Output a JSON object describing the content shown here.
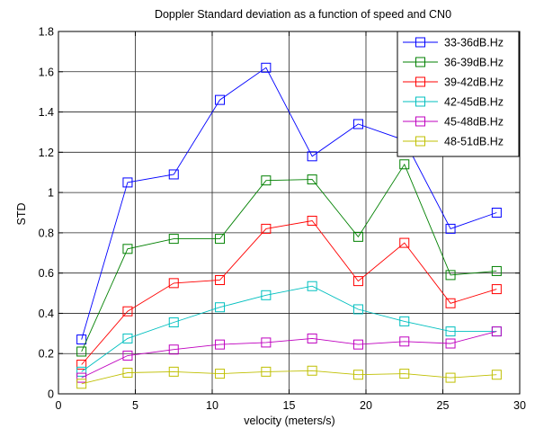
{
  "chart_data": {
    "type": "line",
    "title": "Doppler Standard deviation as a function of speed and CN0",
    "xlabel": "velocity (meters/s)",
    "ylabel": "STD",
    "xlim": [
      0,
      30
    ],
    "ylim": [
      0,
      1.8
    ],
    "xticks": [
      0,
      5,
      10,
      15,
      20,
      25,
      30
    ],
    "yticks": [
      0,
      0.2,
      0.4,
      0.6,
      0.8,
      1,
      1.2,
      1.4,
      1.6,
      1.8
    ],
    "xtick_labels": [
      "0",
      "5",
      "10",
      "15",
      "20",
      "25",
      "30"
    ],
    "ytick_labels": [
      "0",
      "0.2",
      "0.4",
      "0.6",
      "0.8",
      "1",
      "1.2",
      "1.4",
      "1.6",
      "1.8"
    ],
    "grid": true,
    "legend_position": "top-right",
    "marker": "square",
    "x": [
      1.5,
      4.5,
      7.5,
      10.5,
      13.5,
      16.5,
      19.5,
      22.5,
      25.5,
      28.5
    ],
    "series": [
      {
        "name": "33-36dB.Hz",
        "color": "#0000ff",
        "values": [
          0.27,
          1.05,
          1.09,
          1.46,
          1.62,
          1.18,
          1.34,
          1.26,
          0.82,
          0.9
        ]
      },
      {
        "name": "36-39dB.Hz",
        "color": "#008000",
        "values": [
          0.21,
          0.72,
          0.77,
          0.77,
          1.06,
          1.065,
          0.78,
          1.14,
          0.59,
          0.61
        ]
      },
      {
        "name": "39-42dB.Hz",
        "color": "#ff0000",
        "values": [
          0.145,
          0.41,
          0.55,
          0.565,
          0.82,
          0.86,
          0.56,
          0.75,
          0.45,
          0.52
        ]
      },
      {
        "name": "42-45dB.Hz",
        "color": "#00bfbf",
        "values": [
          0.11,
          0.275,
          0.355,
          0.43,
          0.49,
          0.535,
          0.42,
          0.36,
          0.31,
          0.31
        ]
      },
      {
        "name": "45-48dB.Hz",
        "color": "#bf00bf",
        "values": [
          0.08,
          0.19,
          0.22,
          0.245,
          0.255,
          0.275,
          0.245,
          0.26,
          0.25,
          0.31
        ]
      },
      {
        "name": "48-51dB.Hz",
        "color": "#bfbf00",
        "values": [
          0.05,
          0.105,
          0.11,
          0.1,
          0.11,
          0.115,
          0.095,
          0.1,
          0.08,
          0.095
        ]
      }
    ]
  }
}
